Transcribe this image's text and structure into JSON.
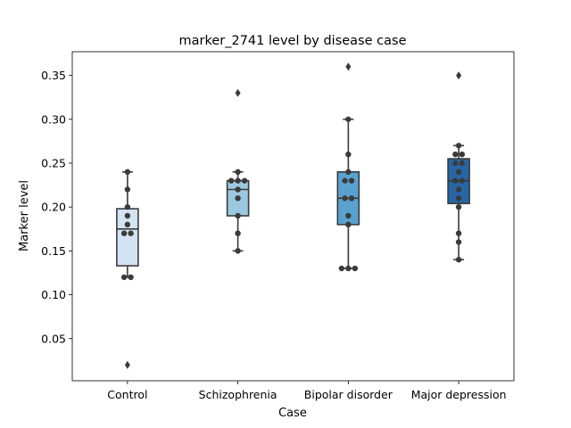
{
  "chart_data": {
    "type": "box",
    "title": "marker_2741 level by disease case",
    "xlabel": "Case",
    "ylabel": "Marker level",
    "categories": [
      "Control",
      "Schizophrenia",
      "Bipolar disorder",
      "Major depression"
    ],
    "ylim": [
      0.002,
      0.377
    ],
    "yticks": [
      0.05,
      0.1,
      0.15,
      0.2,
      0.25,
      0.3,
      0.35
    ],
    "ytick_labels": [
      "0.05",
      "0.10",
      "0.15",
      "0.20",
      "0.25",
      "0.30",
      "0.35"
    ],
    "boxes": [
      {
        "category": "Control",
        "q1": 0.133,
        "median": 0.175,
        "q3": 0.198,
        "whisker_low": 0.12,
        "whisker_high": 0.24,
        "outliers": [
          0.02
        ],
        "color": "#d3e3f3"
      },
      {
        "category": "Schizophrenia",
        "q1": 0.19,
        "median": 0.22,
        "q3": 0.23,
        "whisker_low": 0.15,
        "whisker_high": 0.24,
        "outliers": [
          0.33
        ],
        "color": "#9ac8e0"
      },
      {
        "category": "Bipolar disorder",
        "q1": 0.18,
        "median": 0.21,
        "q3": 0.24,
        "whisker_low": 0.13,
        "whisker_high": 0.3,
        "outliers": [
          0.36
        ],
        "color": "#5aa1cf"
      },
      {
        "category": "Major depression",
        "q1": 0.204,
        "median": 0.23,
        "q3": 0.255,
        "whisker_low": 0.14,
        "whisker_high": 0.27,
        "outliers": [
          0.35
        ],
        "color": "#2666a6"
      }
    ],
    "points": [
      {
        "category": "Control",
        "values": [
          0.02,
          0.12,
          0.12,
          0.17,
          0.17,
          0.18,
          0.19,
          0.2,
          0.22,
          0.24
        ]
      },
      {
        "category": "Schizophrenia",
        "values": [
          0.15,
          0.17,
          0.19,
          0.21,
          0.22,
          0.23,
          0.23,
          0.23,
          0.24,
          0.33
        ]
      },
      {
        "category": "Bipolar disorder",
        "values": [
          0.13,
          0.13,
          0.13,
          0.18,
          0.19,
          0.21,
          0.21,
          0.23,
          0.23,
          0.24,
          0.26,
          0.3,
          0.36
        ]
      },
      {
        "category": "Major depression",
        "values": [
          0.14,
          0.16,
          0.17,
          0.2,
          0.21,
          0.22,
          0.23,
          0.23,
          0.24,
          0.25,
          0.25,
          0.26,
          0.26,
          0.27,
          0.35
        ]
      }
    ],
    "grid": false,
    "legend": "none"
  }
}
